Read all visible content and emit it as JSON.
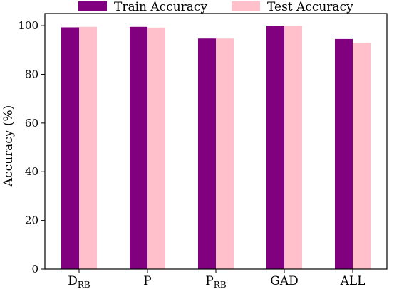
{
  "chart_data": {
    "type": "bar",
    "categories": [
      {
        "base": "D",
        "sub": "RB"
      },
      {
        "base": "P",
        "sub": ""
      },
      {
        "base": "P",
        "sub": "RB"
      },
      {
        "base": "GAD",
        "sub": ""
      },
      {
        "base": "ALL",
        "sub": ""
      }
    ],
    "series": [
      {
        "name": "Train Accuracy",
        "color": "#800080",
        "values": [
          99.3,
          99.5,
          94.7,
          100.0,
          94.5
        ]
      },
      {
        "name": "Test Accuracy",
        "color": "#ffc0cb",
        "values": [
          99.5,
          99.2,
          94.7,
          100.0,
          93.0
        ]
      }
    ],
    "ylabel": "Accuracy (%)",
    "ylim": [
      0,
      105
    ],
    "yticks": [
      0,
      20,
      40,
      60,
      80,
      100
    ],
    "grid": false,
    "legend_position": "top-center"
  }
}
